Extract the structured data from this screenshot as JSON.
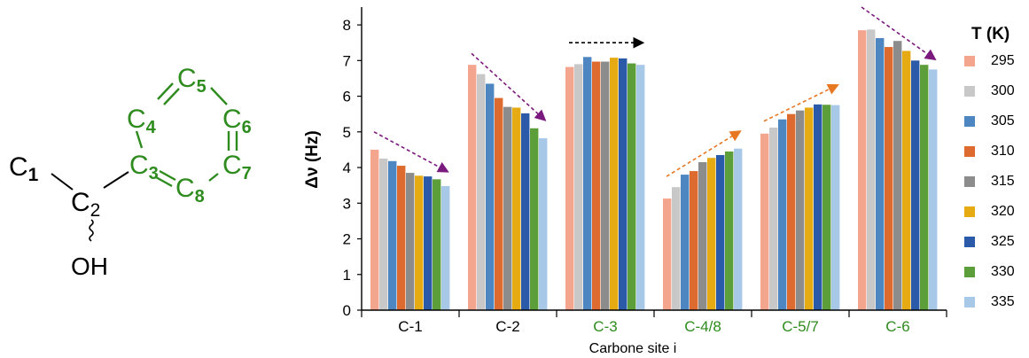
{
  "molecule": {
    "c1_label": "C",
    "c1_sub": "1",
    "c2_label": "C",
    "c2_sub": "2",
    "oh_label": "OH",
    "ring": [
      {
        "label": "C",
        "sub": "3"
      },
      {
        "label": "C",
        "sub": "4"
      },
      {
        "label": "C",
        "sub": "5"
      },
      {
        "label": "C",
        "sub": "6"
      },
      {
        "label": "C",
        "sub": "7"
      },
      {
        "label": "C",
        "sub": "8"
      }
    ],
    "ring_color": "#2e8b1e",
    "chain_color": "#000000"
  },
  "chart_data": {
    "type": "bar",
    "ylabel": "Δν (Hz)",
    "xlabel": "Carbone site i",
    "ylim": [
      0,
      8.4
    ],
    "yticks": [
      0,
      1,
      2,
      3,
      4,
      5,
      6,
      7,
      8
    ],
    "categories": [
      "C-1",
      "C-2",
      "C-3",
      "C-4/8",
      "C-5/7",
      "C-6"
    ],
    "category_colors": [
      "#000000",
      "#000000",
      "#2e8b1e",
      "#2e8b1e",
      "#2e8b1e",
      "#2e8b1e"
    ],
    "legend_title": "T (K)",
    "legend_position": "right",
    "grid": false,
    "series": [
      {
        "name": "295",
        "color": "#f4a58e",
        "values": [
          4.5,
          6.88,
          6.82,
          3.13,
          4.95,
          7.85
        ]
      },
      {
        "name": "300",
        "color": "#c8c8c8",
        "values": [
          4.25,
          6.62,
          6.9,
          3.45,
          5.12,
          7.87
        ]
      },
      {
        "name": "305",
        "color": "#4d86c1",
        "values": [
          4.18,
          6.35,
          7.1,
          3.8,
          5.35,
          7.63
        ]
      },
      {
        "name": "310",
        "color": "#dd6b2f",
        "values": [
          4.05,
          5.95,
          6.97,
          3.9,
          5.5,
          7.38
        ]
      },
      {
        "name": "315",
        "color": "#8c8c8c",
        "values": [
          3.85,
          5.7,
          6.97,
          4.15,
          5.6,
          7.55
        ]
      },
      {
        "name": "320",
        "color": "#e6aa13",
        "values": [
          3.77,
          5.68,
          7.08,
          4.27,
          5.68,
          7.27
        ]
      },
      {
        "name": "325",
        "color": "#2a5aa8",
        "values": [
          3.75,
          5.52,
          7.06,
          4.35,
          5.77,
          7.0
        ]
      },
      {
        "name": "330",
        "color": "#5c9f3a",
        "values": [
          3.67,
          5.1,
          6.92,
          4.45,
          5.76,
          6.88
        ]
      },
      {
        "name": "335",
        "color": "#a8c8e8",
        "values": [
          3.48,
          4.82,
          6.88,
          4.53,
          5.75,
          6.75
        ]
      }
    ],
    "trend_arrows": [
      {
        "category": "C-1",
        "color": "#7b1a7e",
        "from": 5.0,
        "to": 3.9
      },
      {
        "category": "C-2",
        "color": "#7b1a7e",
        "from": 7.2,
        "to": 5.35
      },
      {
        "category": "C-3",
        "color": "#000000",
        "from": 7.5,
        "to": 7.5
      },
      {
        "category": "C-4/8",
        "color": "#e87722",
        "from": 3.75,
        "to": 5.0
      },
      {
        "category": "C-5/7",
        "color": "#e87722",
        "from": 5.3,
        "to": 6.3
      },
      {
        "category": "C-6",
        "color": "#7b1a7e",
        "from": 8.5,
        "to": 7.05
      }
    ]
  }
}
